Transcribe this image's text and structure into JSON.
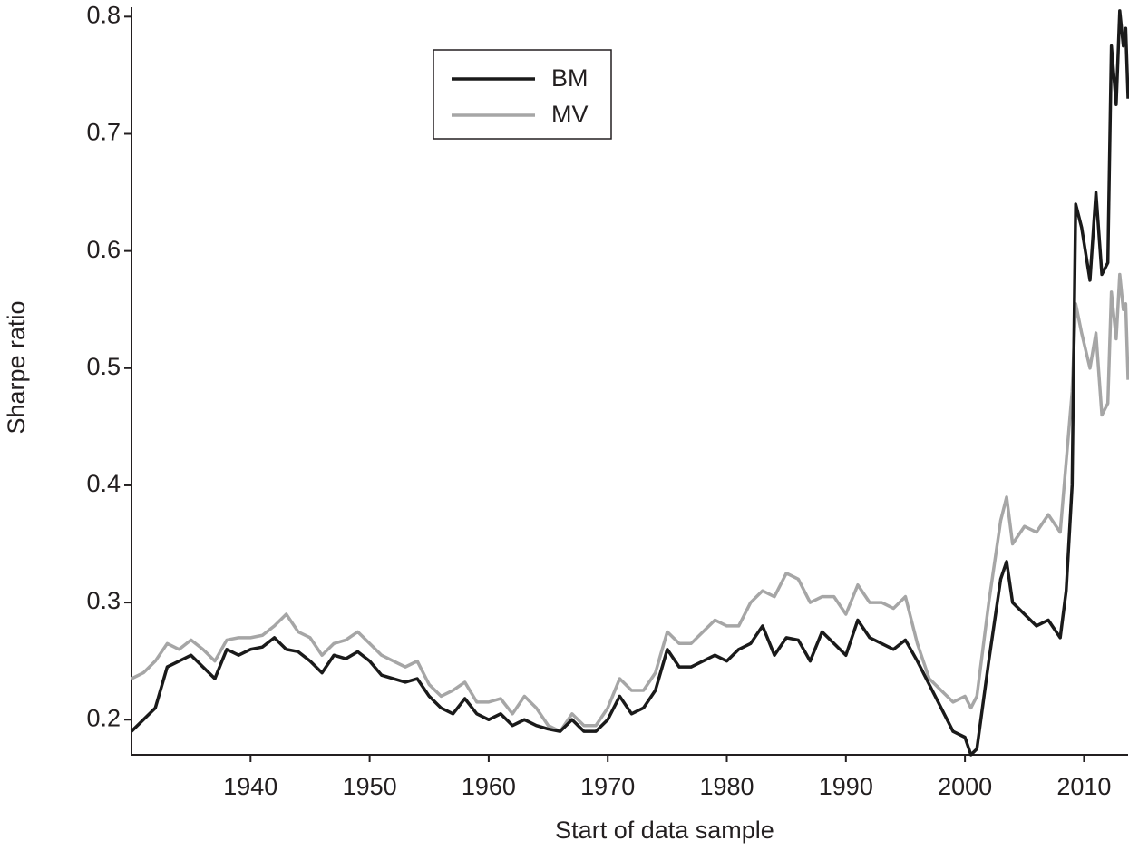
{
  "chart_data": {
    "type": "line",
    "x_label": "Start of data sample",
    "y_label": "Sharpe ratio",
    "x": [
      1930,
      1931,
      1932,
      1933,
      1934,
      1935,
      1936,
      1937,
      1938,
      1939,
      1940,
      1941,
      1942,
      1943,
      1944,
      1945,
      1946,
      1947,
      1948,
      1949,
      1950,
      1951,
      1952,
      1953,
      1954,
      1955,
      1956,
      1957,
      1958,
      1959,
      1960,
      1961,
      1962,
      1963,
      1964,
      1965,
      1966,
      1967,
      1968,
      1969,
      1970,
      1971,
      1972,
      1973,
      1974,
      1975,
      1976,
      1977,
      1978,
      1979,
      1980,
      1981,
      1982,
      1983,
      1984,
      1985,
      1986,
      1987,
      1988,
      1989,
      1990,
      1991,
      1992,
      1993,
      1994,
      1995,
      1996,
      1997,
      1998,
      1999,
      2000,
      2000.5,
      2001,
      2002,
      2003,
      2003.5,
      2004,
      2005,
      2006,
      2007,
      2008,
      2008.5,
      2009,
      2009.3,
      2009.8,
      2010.5,
      2011,
      2011.5,
      2012,
      2012.3,
      2012.7,
      2013,
      2013.3,
      2013.5,
      2013.7
    ],
    "series": [
      {
        "name": "BM",
        "color": "#1a1a1a",
        "values": [
          0.19,
          0.2,
          0.21,
          0.245,
          0.25,
          0.255,
          0.245,
          0.235,
          0.26,
          0.255,
          0.26,
          0.262,
          0.27,
          0.26,
          0.258,
          0.25,
          0.24,
          0.255,
          0.252,
          0.258,
          0.25,
          0.238,
          0.235,
          0.232,
          0.235,
          0.22,
          0.21,
          0.205,
          0.218,
          0.205,
          0.2,
          0.205,
          0.195,
          0.2,
          0.195,
          0.192,
          0.19,
          0.2,
          0.19,
          0.19,
          0.2,
          0.22,
          0.205,
          0.21,
          0.225,
          0.26,
          0.245,
          0.245,
          0.25,
          0.255,
          0.25,
          0.26,
          0.265,
          0.28,
          0.255,
          0.27,
          0.268,
          0.25,
          0.275,
          0.265,
          0.255,
          0.285,
          0.27,
          0.265,
          0.26,
          0.268,
          0.25,
          0.23,
          0.21,
          0.19,
          0.185,
          0.17,
          0.175,
          0.25,
          0.32,
          0.335,
          0.3,
          0.29,
          0.28,
          0.285,
          0.27,
          0.31,
          0.4,
          0.64,
          0.62,
          0.575,
          0.65,
          0.58,
          0.59,
          0.775,
          0.725,
          0.805,
          0.775,
          0.79,
          0.73
        ]
      },
      {
        "name": "MV",
        "color": "#a6a6a6",
        "values": [
          0.235,
          0.24,
          0.25,
          0.265,
          0.26,
          0.268,
          0.26,
          0.25,
          0.268,
          0.27,
          0.27,
          0.272,
          0.28,
          0.29,
          0.275,
          0.27,
          0.255,
          0.265,
          0.268,
          0.275,
          0.265,
          0.255,
          0.25,
          0.245,
          0.25,
          0.23,
          0.22,
          0.225,
          0.232,
          0.215,
          0.215,
          0.218,
          0.205,
          0.22,
          0.21,
          0.195,
          0.19,
          0.205,
          0.195,
          0.195,
          0.21,
          0.235,
          0.225,
          0.225,
          0.24,
          0.275,
          0.265,
          0.265,
          0.275,
          0.285,
          0.28,
          0.28,
          0.3,
          0.31,
          0.305,
          0.325,
          0.32,
          0.3,
          0.305,
          0.305,
          0.29,
          0.315,
          0.3,
          0.3,
          0.295,
          0.305,
          0.265,
          0.235,
          0.225,
          0.215,
          0.22,
          0.21,
          0.22,
          0.3,
          0.37,
          0.39,
          0.35,
          0.365,
          0.36,
          0.375,
          0.36,
          0.42,
          0.48,
          0.555,
          0.53,
          0.5,
          0.53,
          0.46,
          0.47,
          0.565,
          0.525,
          0.58,
          0.55,
          0.555,
          0.49
        ]
      }
    ],
    "xlim": [
      1930,
      2013.7
    ],
    "xticks": [
      1940,
      1950,
      1960,
      1970,
      1980,
      1990,
      2000,
      2010
    ],
    "ylim": [
      0.17,
      0.808
    ],
    "yticks": [
      0.2,
      0.3,
      0.4,
      0.5,
      0.6,
      0.7,
      0.8
    ],
    "grid": false
  }
}
